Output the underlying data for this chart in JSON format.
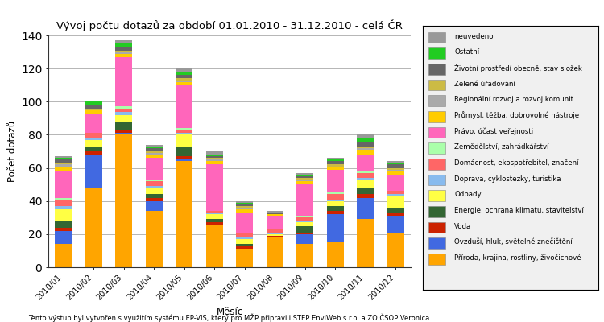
{
  "title": "Vývoj počtu dotazů za období 01.01.2010 - 31.12.2010 - celá ČR",
  "xlabel": "Měsíc",
  "ylabel": "Počet dotazů",
  "footer": "Tento výstup byl vytvořen s využitím systému EP-VIS, který pro MŽP připravili STEP EnviWeb s.r.o. a ZO ČSOP Veronica.",
  "months": [
    "2010/01",
    "2010/02",
    "2010/03",
    "2010/04",
    "2010/05",
    "2010/06",
    "2010/07",
    "2010/08",
    "2010/09",
    "2010/10",
    "2010/11",
    "2010/12"
  ],
  "categories": [
    "Příroda, krajina, rostliny, živočichové",
    "Ovzduší, hluk, světelné znečištění",
    "Voda",
    "Energie, ochrana klimatu, stavitelství",
    "Odpady",
    "Doprava, cyklostezky, turistika",
    "Domácnost, ekospotřebitel, značení",
    "Zemědělství, zahrádkářství",
    "Právo, účast veřejnosti",
    "Průmysl, těžba, dobrovolné nástroje",
    "Regionální rozvoj a rozvoj komunit",
    "Zelené úřadování",
    "Životní prostředí obecně, stav složek",
    "Ostatní",
    "neuvedeno"
  ],
  "colors": [
    "#FFA500",
    "#4169E1",
    "#CC2200",
    "#336633",
    "#FFFF44",
    "#88BBEE",
    "#FF6666",
    "#AAFFAA",
    "#FF66BB",
    "#FFCC00",
    "#AAAAAA",
    "#CCBB44",
    "#666666",
    "#22CC22",
    "#999999"
  ],
  "data": {
    "Příroda, krajina, rostliny, živočichové": [
      14,
      48,
      80,
      34,
      64,
      26,
      11,
      18,
      14,
      15,
      29,
      21
    ],
    "Ovzduší, hluk, světelné znečištění": [
      8,
      20,
      1,
      6,
      1,
      0,
      0,
      0,
      6,
      17,
      13,
      10
    ],
    "Voda": [
      2,
      2,
      2,
      2,
      2,
      1,
      2,
      1,
      1,
      2,
      2,
      2
    ],
    "Energie, ochrana klimatu, stavitelství": [
      4,
      3,
      5,
      2,
      6,
      2,
      1,
      0,
      4,
      3,
      4,
      3
    ],
    "Odpady": [
      7,
      4,
      4,
      4,
      7,
      3,
      3,
      1,
      2,
      3,
      5,
      7
    ],
    "Doprava, cyklostezky, turistika": [
      2,
      1,
      2,
      1,
      1,
      1,
      1,
      1,
      1,
      1,
      1,
      1
    ],
    "Domácnost, ekospotřebitel, značení": [
      4,
      3,
      2,
      3,
      2,
      1,
      3,
      2,
      2,
      3,
      3,
      2
    ],
    "Zemědělství, zahrádkářství": [
      1,
      0,
      1,
      1,
      1,
      0,
      0,
      0,
      1,
      1,
      1,
      0
    ],
    "Právo, účast veřejnosti": [
      16,
      12,
      30,
      13,
      26,
      28,
      12,
      8,
      19,
      14,
      10,
      10
    ],
    "Průmysl, těžba, dobrovolné nástroje": [
      3,
      2,
      2,
      2,
      2,
      2,
      2,
      1,
      2,
      2,
      3,
      2
    ],
    "Regionální rozvoj a rozvoj komunit": [
      1,
      0,
      1,
      1,
      1,
      1,
      1,
      0,
      1,
      0,
      1,
      1
    ],
    "Zelené úřadování": [
      1,
      1,
      1,
      1,
      1,
      1,
      1,
      0,
      1,
      1,
      1,
      1
    ],
    "Životní prostředí obecně, stav složek": [
      2,
      2,
      2,
      2,
      2,
      1,
      1,
      1,
      1,
      2,
      3,
      2
    ],
    "Ostatní": [
      1,
      2,
      2,
      1,
      2,
      1,
      1,
      0,
      1,
      1,
      2,
      1
    ],
    "neuvedeno": [
      1,
      0,
      2,
      1,
      2,
      2,
      1,
      1,
      1,
      1,
      2,
      1
    ]
  },
  "ylim": [
    0,
    140
  ],
  "yticks": [
    0,
    20,
    40,
    60,
    80,
    100,
    120,
    140
  ],
  "bg_color": "#f0f0f0",
  "plot_bg": "#ffffff"
}
